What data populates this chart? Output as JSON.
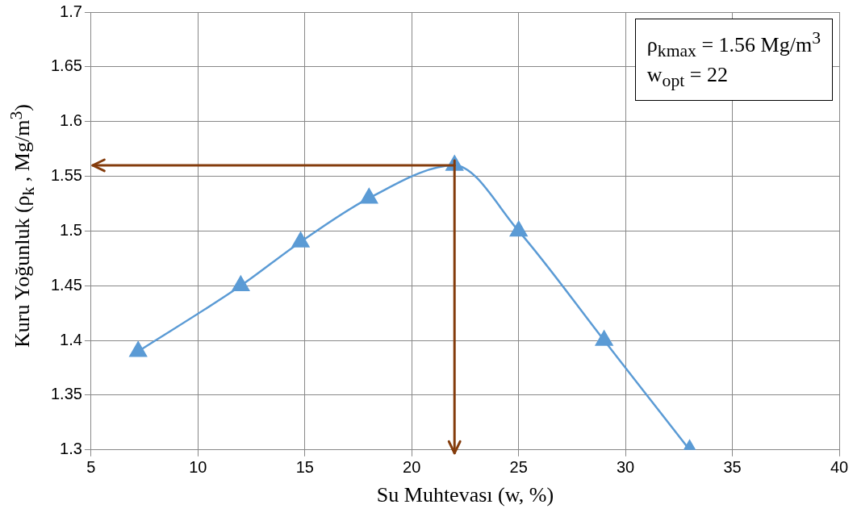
{
  "chart_data": {
    "type": "line",
    "xlabel": "Su Muhtevası (w, %)",
    "ylabel": "Kuru Yoğunluk (ρ$_{k}$ , Mg/m$^{3}$)",
    "x": [
      7.2,
      12,
      14.8,
      18,
      22,
      25,
      29,
      33
    ],
    "series": [
      {
        "color": "#5b9bd5",
        "values": [
          1.39,
          1.45,
          1.49,
          1.53,
          1.56,
          1.5,
          1.4,
          1.3
        ]
      }
    ],
    "xlim": [
      5,
      40
    ],
    "xticks": [
      5,
      10,
      15,
      20,
      25,
      30,
      35,
      40
    ],
    "ylim": [
      1.3,
      1.7
    ],
    "yticks": [
      1.3,
      1.35,
      1.4,
      1.45,
      1.5,
      1.55,
      1.6,
      1.65,
      1.7
    ],
    "ref_lines": [
      {
        "axis": "y",
        "value": 1.56,
        "label": null,
        "color": "#843c0c"
      },
      {
        "axis": "x",
        "value": 22,
        "label": null,
        "color": "#843c0c"
      }
    ],
    "grid": true,
    "legend": false,
    "marker": "triangle",
    "line_style": "solid",
    "annotations": [
      "ρ$_{kmax}$ = 1.56 Mg/m$^{3}$",
      "w$_{opt}$ = 22"
    ]
  }
}
